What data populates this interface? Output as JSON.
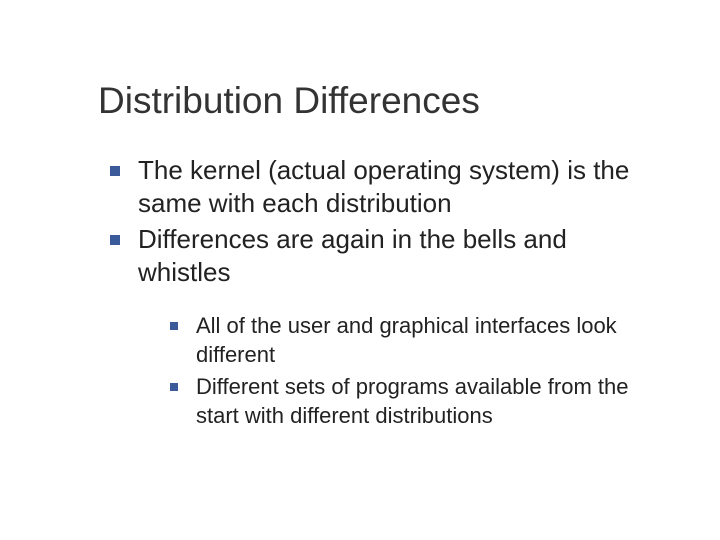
{
  "slide": {
    "title": "Distribution Differences",
    "bullets_level1": [
      "The kernel (actual operating system) is the same with each distribution",
      "Differences are again in the bells and whistles"
    ],
    "bullets_level2": [
      "All of the user and graphical interfaces look different",
      "Different sets of programs available from the start with different distributions"
    ]
  },
  "style": {
    "bullet_color": "#3a5a9a",
    "title_color": "#333333",
    "text_color": "#222222",
    "background_color": "#ffffff",
    "title_fontsize": 37,
    "level1_fontsize": 26,
    "level2_fontsize": 22
  }
}
